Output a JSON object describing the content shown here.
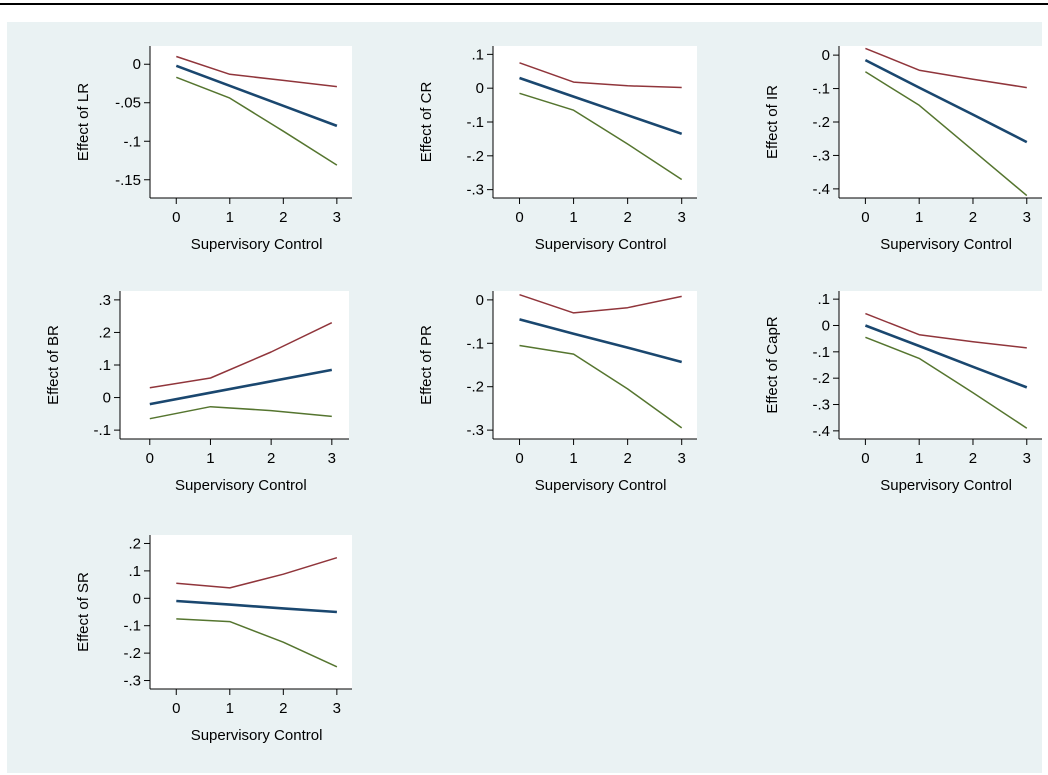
{
  "colors": {
    "page_background": "#ffffff",
    "figure_background": "#eaf2f3",
    "plot_background": "#ffffff",
    "axis": "#000000",
    "estimate_line": "#1a476f",
    "upper_bound_line": "#90353b",
    "lower_bound_line": "#55752f"
  },
  "chart_data": [
    {
      "type": "line",
      "ylabel": "Effect of LR",
      "xlabel": "Supervisory Control",
      "x": [
        0,
        1,
        2,
        3
      ],
      "xlim": [
        0,
        3
      ],
      "ylim": [
        -0.15,
        0
      ],
      "yticks": [
        0,
        -0.05,
        -0.1,
        -0.15
      ],
      "ytick_labels": [
        "0",
        "-.05",
        "-.1",
        "-.15"
      ],
      "xtick_labels": [
        "0",
        "1",
        "2",
        "3"
      ],
      "grid": false,
      "legend": "none",
      "series": [
        {
          "role": "estimate",
          "values": [
            -0.002,
            -0.028,
            -0.054,
            -0.08
          ]
        },
        {
          "role": "upper",
          "values": [
            0.01,
            -0.013,
            -0.021,
            -0.029
          ]
        },
        {
          "role": "lower",
          "values": [
            -0.017,
            -0.044,
            -0.087,
            -0.131
          ]
        }
      ]
    },
    {
      "type": "line",
      "ylabel": "Effect of CR",
      "xlabel": "Supervisory Control",
      "x": [
        0,
        1,
        2,
        3
      ],
      "xlim": [
        0,
        3
      ],
      "ylim": [
        -0.3,
        0.1
      ],
      "yticks": [
        0.1,
        0,
        -0.1,
        -0.2,
        -0.3
      ],
      "ytick_labels": [
        ".1",
        "0",
        "-.1",
        "-.2",
        "-.3"
      ],
      "xtick_labels": [
        "0",
        "1",
        "2",
        "3"
      ],
      "grid": false,
      "legend": "none",
      "series": [
        {
          "role": "estimate",
          "values": [
            0.03,
            -0.025,
            -0.08,
            -0.135
          ]
        },
        {
          "role": "upper",
          "values": [
            0.075,
            0.018,
            0.007,
            0.002
          ]
        },
        {
          "role": "lower",
          "values": [
            -0.015,
            -0.065,
            -0.165,
            -0.27
          ]
        }
      ]
    },
    {
      "type": "line",
      "ylabel": "Effect of IR",
      "xlabel": "Supervisory Control",
      "x": [
        0,
        1,
        2,
        3
      ],
      "xlim": [
        0,
        3
      ],
      "ylim": [
        -0.4,
        0
      ],
      "yticks": [
        0,
        -0.1,
        -0.2,
        -0.3,
        -0.4
      ],
      "ytick_labels": [
        "0",
        "-.1",
        "-.2",
        "-.3",
        "-.4"
      ],
      "xtick_labels": [
        "0",
        "1",
        "2",
        "3"
      ],
      "grid": false,
      "legend": "none",
      "series": [
        {
          "role": "estimate",
          "values": [
            -0.015,
            -0.097,
            -0.178,
            -0.26
          ]
        },
        {
          "role": "upper",
          "values": [
            0.02,
            -0.045,
            -0.072,
            -0.097
          ]
        },
        {
          "role": "lower",
          "values": [
            -0.05,
            -0.15,
            -0.285,
            -0.42
          ]
        }
      ]
    },
    {
      "type": "line",
      "ylabel": "Effect of BR",
      "xlabel": "Supervisory Control",
      "x": [
        0,
        1,
        2,
        3
      ],
      "xlim": [
        0,
        3
      ],
      "ylim": [
        -0.1,
        0.3
      ],
      "yticks": [
        0.3,
        0.2,
        0.1,
        0,
        -0.1
      ],
      "ytick_labels": [
        ".3",
        ".2",
        ".1",
        "0",
        "-.1"
      ],
      "xtick_labels": [
        "0",
        "1",
        "2",
        "3"
      ],
      "grid": false,
      "legend": "none",
      "series": [
        {
          "role": "estimate",
          "values": [
            -0.02,
            0.015,
            0.05,
            0.085
          ]
        },
        {
          "role": "upper",
          "values": [
            0.03,
            0.06,
            0.14,
            0.23
          ]
        },
        {
          "role": "lower",
          "values": [
            -0.065,
            -0.028,
            -0.04,
            -0.058
          ]
        }
      ]
    },
    {
      "type": "line",
      "ylabel": "Effect of PR",
      "xlabel": "Supervisory Control",
      "x": [
        0,
        1,
        2,
        3
      ],
      "xlim": [
        0,
        3
      ],
      "ylim": [
        -0.3,
        0
      ],
      "yticks": [
        0,
        -0.1,
        -0.2,
        -0.3
      ],
      "ytick_labels": [
        "0",
        "-.1",
        "-.2",
        "-.3"
      ],
      "xtick_labels": [
        "0",
        "1",
        "2",
        "3"
      ],
      "grid": false,
      "legend": "none",
      "series": [
        {
          "role": "estimate",
          "values": [
            -0.045,
            -0.078,
            -0.11,
            -0.143
          ]
        },
        {
          "role": "upper",
          "values": [
            0.012,
            -0.03,
            -0.018,
            0.008
          ]
        },
        {
          "role": "lower",
          "values": [
            -0.105,
            -0.125,
            -0.205,
            -0.295
          ]
        }
      ]
    },
    {
      "type": "line",
      "ylabel": "Effect of CapR",
      "xlabel": "Supervisory Control",
      "x": [
        0,
        1,
        2,
        3
      ],
      "xlim": [
        0,
        3
      ],
      "ylim": [
        -0.4,
        0.1
      ],
      "yticks": [
        0.1,
        0,
        -0.1,
        -0.2,
        -0.3,
        -0.4
      ],
      "ytick_labels": [
        ".1",
        "0",
        "-.1",
        "-.2",
        "-.3",
        "-.4"
      ],
      "xtick_labels": [
        "0",
        "1",
        "2",
        "3"
      ],
      "grid": false,
      "legend": "none",
      "series": [
        {
          "role": "estimate",
          "values": [
            0,
            -0.078,
            -0.157,
            -0.235
          ]
        },
        {
          "role": "upper",
          "values": [
            0.045,
            -0.035,
            -0.062,
            -0.085
          ]
        },
        {
          "role": "lower",
          "values": [
            -0.045,
            -0.125,
            -0.255,
            -0.39
          ]
        }
      ]
    },
    {
      "type": "line",
      "ylabel": "Effect of SR",
      "xlabel": "Supervisory Control",
      "x": [
        0,
        1,
        2,
        3
      ],
      "xlim": [
        0,
        3
      ],
      "ylim": [
        -0.3,
        0.2
      ],
      "yticks": [
        0.2,
        0.1,
        0,
        -0.1,
        -0.2,
        -0.3
      ],
      "ytick_labels": [
        ".2",
        ".1",
        "0",
        "-.1",
        "-.2",
        "-.3"
      ],
      "xtick_labels": [
        "0",
        "1",
        "2",
        "3"
      ],
      "grid": false,
      "legend": "none",
      "series": [
        {
          "role": "estimate",
          "values": [
            -0.01,
            -0.023,
            -0.037,
            -0.05
          ]
        },
        {
          "role": "upper",
          "values": [
            0.055,
            0.038,
            0.088,
            0.148
          ]
        },
        {
          "role": "lower",
          "values": [
            -0.075,
            -0.085,
            -0.16,
            -0.25
          ]
        }
      ]
    }
  ]
}
